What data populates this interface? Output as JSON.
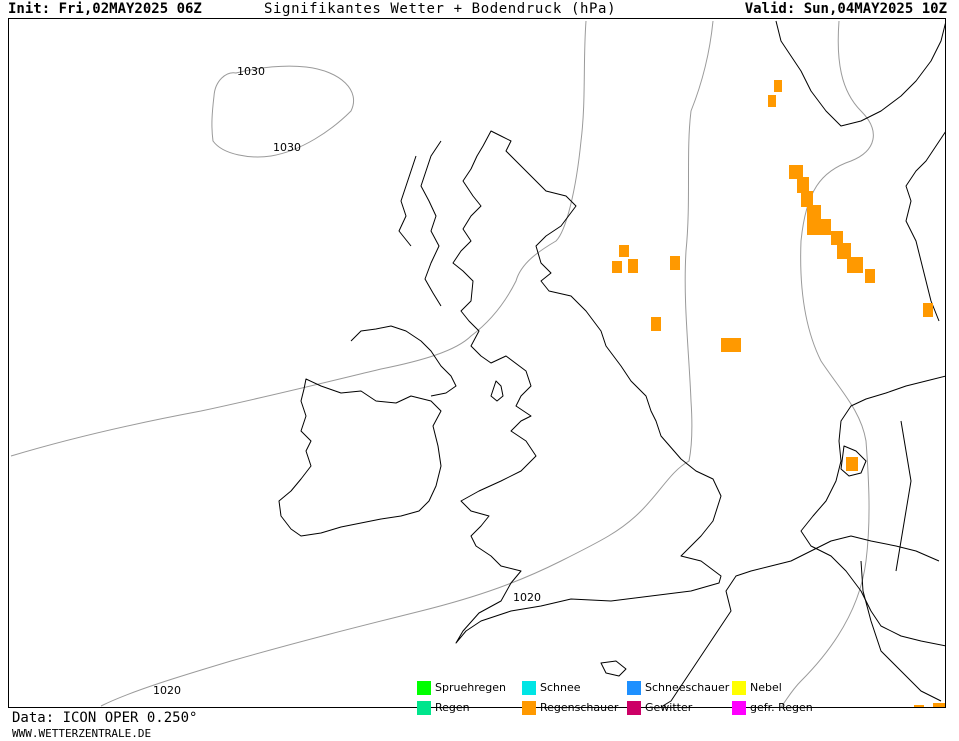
{
  "header": {
    "init": "Init: Fri,02MAY2025 06Z",
    "title": "Signifikantes Wetter + Bodendruck (hPa)",
    "valid": "Valid: Sun,04MAY2025 10Z"
  },
  "isobars": [
    {
      "label": "1030"
    },
    {
      "label": "1030"
    },
    {
      "label": "1020"
    },
    {
      "label": "1020"
    }
  ],
  "legend": {
    "items": [
      {
        "label": "Spruehregen",
        "color": "#00ff00"
      },
      {
        "label": "Schnee",
        "color": "#00e5e5"
      },
      {
        "label": "Schneeschauer",
        "color": "#1e90ff"
      },
      {
        "label": "Nebel",
        "color": "#ffff00"
      },
      {
        "label": "Regen",
        "color": "#00e58c"
      },
      {
        "label": "Regenschauer",
        "color": "#ff9900"
      },
      {
        "label": "Gewitter",
        "color": "#cc0066"
      },
      {
        "label": "gefr. Regen",
        "color": "#ff00ff"
      }
    ]
  },
  "precip_color": "#ff9900",
  "footer": {
    "data": "Data: ICON OPER 0.250°",
    "url": "WWW.WETTERZENTRALE.DE"
  }
}
